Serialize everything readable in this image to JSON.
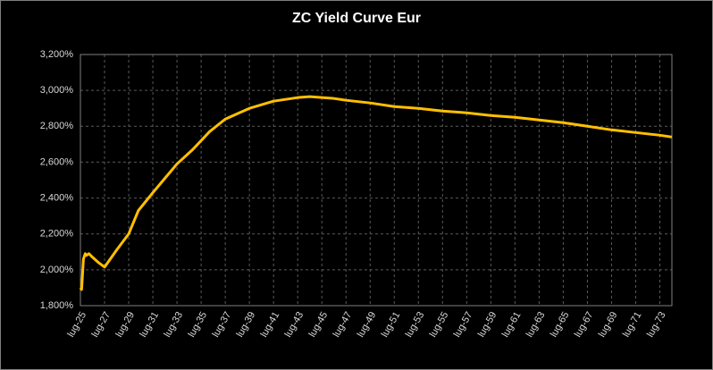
{
  "chart_data": {
    "type": "line",
    "title": "ZC Yield Curve Eur",
    "x": [
      2025.5,
      2025.6,
      2025.75,
      2025.9,
      2026.0,
      2026.2,
      2026.5,
      2027.0,
      2027.5,
      2028.5,
      2029.5,
      2030.3,
      2031.5,
      2032.5,
      2033.5,
      2034.8,
      2036.2,
      2037.5,
      2039.5,
      2041.5,
      2043.5,
      2044.5,
      2045.5,
      2046.5,
      2047.5,
      2049.5,
      2051.5,
      2053.5,
      2055.5,
      2057.5,
      2059.5,
      2061.5,
      2063.5,
      2065.5,
      2067.5,
      2069.5,
      2071.5,
      2073.5,
      2074.5
    ],
    "series": [
      {
        "name": "ZC Yield Curve Eur",
        "color": "#ffc000",
        "values": [
          1.9,
          1.89,
          2.06,
          2.09,
          2.08,
          2.09,
          2.07,
          2.04,
          2.015,
          2.11,
          2.2,
          2.33,
          2.43,
          2.51,
          2.59,
          2.67,
          2.77,
          2.84,
          2.9,
          2.94,
          2.96,
          2.965,
          2.96,
          2.955,
          2.945,
          2.93,
          2.91,
          2.9,
          2.885,
          2.875,
          2.86,
          2.85,
          2.835,
          2.82,
          2.8,
          2.78,
          2.765,
          2.75,
          2.74
        ]
      }
    ],
    "xlim": [
      2025.5,
      2074.5
    ],
    "xticks": [
      {
        "value": 2025.5,
        "label": "lug-25"
      },
      {
        "value": 2027.5,
        "label": "lug-27"
      },
      {
        "value": 2029.5,
        "label": "lug-29"
      },
      {
        "value": 2031.5,
        "label": "lug-31"
      },
      {
        "value": 2033.5,
        "label": "lug-33"
      },
      {
        "value": 2035.5,
        "label": "lug-35"
      },
      {
        "value": 2037.5,
        "label": "lug-37"
      },
      {
        "value": 2039.5,
        "label": "lug-39"
      },
      {
        "value": 2041.5,
        "label": "lug-41"
      },
      {
        "value": 2043.5,
        "label": "lug-43"
      },
      {
        "value": 2045.5,
        "label": "lug-45"
      },
      {
        "value": 2047.5,
        "label": "lug-47"
      },
      {
        "value": 2049.5,
        "label": "lug-49"
      },
      {
        "value": 2051.5,
        "label": "lug-51"
      },
      {
        "value": 2053.5,
        "label": "lug-53"
      },
      {
        "value": 2055.5,
        "label": "lug-55"
      },
      {
        "value": 2057.5,
        "label": "lug-57"
      },
      {
        "value": 2059.5,
        "label": "lug-59"
      },
      {
        "value": 2061.5,
        "label": "lug-61"
      },
      {
        "value": 2063.5,
        "label": "lug-63"
      },
      {
        "value": 2065.5,
        "label": "lug-65"
      },
      {
        "value": 2067.5,
        "label": "lug-67"
      },
      {
        "value": 2069.5,
        "label": "lug-69"
      },
      {
        "value": 2071.5,
        "label": "lug-71"
      },
      {
        "value": 2073.5,
        "label": "lug-73"
      }
    ],
    "ylim": [
      1.8,
      3.2
    ],
    "yticks": [
      {
        "value": 1.8,
        "label": "1,800%"
      },
      {
        "value": 2.0,
        "label": "2,000%"
      },
      {
        "value": 2.2,
        "label": "2,200%"
      },
      {
        "value": 2.4,
        "label": "2,400%"
      },
      {
        "value": 2.6,
        "label": "2,600%"
      },
      {
        "value": 2.8,
        "label": "2,800%"
      },
      {
        "value": 3.0,
        "label": "3,000%"
      },
      {
        "value": 3.2,
        "label": "3,200%"
      }
    ],
    "grid": true
  }
}
